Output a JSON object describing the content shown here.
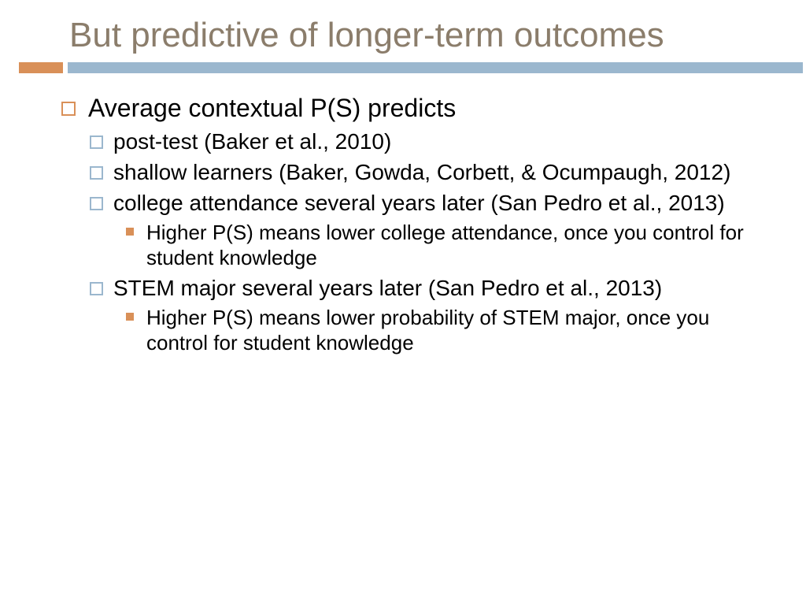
{
  "title": "But predictive of longer-term outcomes",
  "colors": {
    "title_text": "#8b7d6b",
    "accent_orange": "#d99058",
    "accent_blue": "#9bb7ce",
    "body_text": "#000000",
    "background": "#ffffff"
  },
  "typography": {
    "title_fontsize": 44,
    "l1_fontsize": 32,
    "l2_fontsize": 28,
    "l3_fontsize": 26,
    "font_family": "Arial"
  },
  "bullets": {
    "l1_marker": "hollow-square-orange",
    "l2_marker": "hollow-square-blue",
    "l3_marker": "filled-square-orange"
  },
  "l1_0": "Average contextual P(S) predicts",
  "l2_0": "post-test (Baker et al., 2010)",
  "l2_1": "shallow learners (Baker, Gowda, Corbett, & Ocumpaugh, 2012)",
  "l2_2": "college attendance several years later (San Pedro et al., 2013)",
  "l3_0": "Higher P(S) means lower college attendance, once you control for student knowledge",
  "l2_3": "STEM major several years later (San Pedro et al., 2013)",
  "l3_1": "Higher P(S) means lower probability of STEM major, once you control for student knowledge"
}
